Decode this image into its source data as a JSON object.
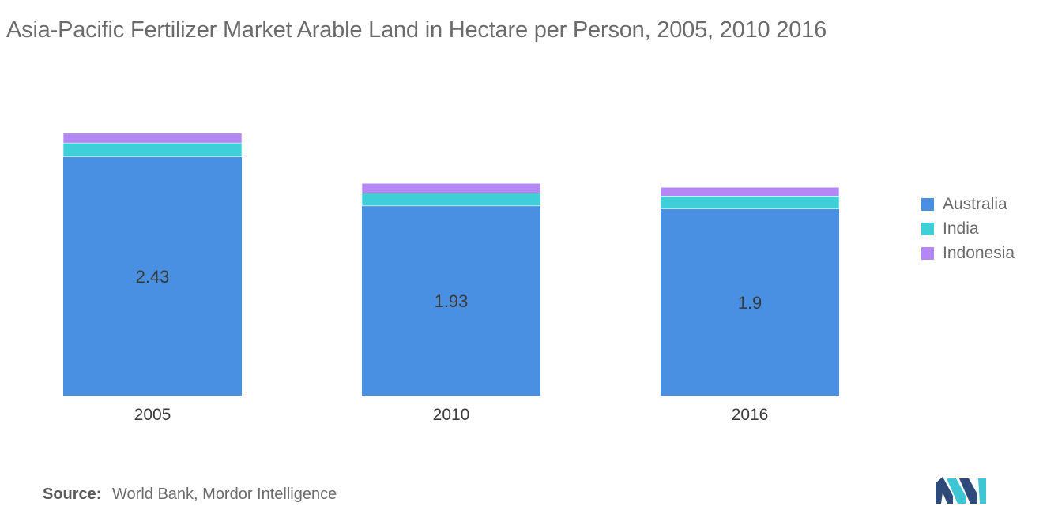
{
  "title": "Asia-Pacific Fertilizer Market Arable Land in Hectare per Person, 2005, 2010  2016",
  "source": {
    "label": "Source:",
    "text": "World Bank, Mordor Intelligence"
  },
  "colors": {
    "australia": "#4a90e2",
    "india": "#3ecfd9",
    "indonesia": "#b388f5",
    "text": "#6b6b6b"
  },
  "chart_data": {
    "type": "bar",
    "stacked": true,
    "categories": [
      "2005",
      "2010",
      "2016"
    ],
    "series": [
      {
        "name": "Australia",
        "values": [
          2.43,
          1.93,
          1.9
        ],
        "color": "#4a90e2",
        "labels": [
          "2.43",
          "1.93",
          "1.9"
        ]
      },
      {
        "name": "India",
        "values": [
          0.14,
          0.13,
          0.13
        ],
        "color": "#3ecfd9"
      },
      {
        "name": "Indonesia",
        "values": [
          0.1,
          0.1,
          0.09
        ],
        "color": "#b388f5"
      }
    ],
    "ylim": [
      0,
      2.7
    ],
    "grid": false,
    "legend_position": "right"
  }
}
